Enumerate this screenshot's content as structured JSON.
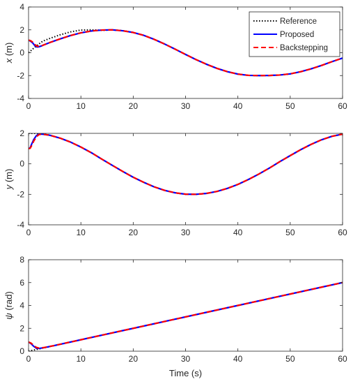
{
  "chart_data": [
    {
      "type": "line",
      "ylabel_var": "x",
      "ylabel_unit": " (m)",
      "xlabel": "",
      "xlim": [
        0,
        60
      ],
      "ylim": [
        -4,
        4
      ],
      "xticks": [
        0,
        10,
        20,
        30,
        40,
        50,
        60
      ],
      "yticks": [
        -4,
        -2,
        0,
        2,
        4
      ],
      "legend": {
        "position": "top-right",
        "entries": [
          {
            "name": "Reference",
            "color": "#000000",
            "style": "dotted"
          },
          {
            "name": "Proposed",
            "color": "#0000ff",
            "style": "solid"
          },
          {
            "name": "Backstepping",
            "color": "#ff0000",
            "style": "dashed"
          }
        ]
      },
      "series": [
        {
          "name": "Reference",
          "color": "#000000",
          "style": "dotted",
          "x": [
            0,
            0.5,
            1,
            1.5,
            2,
            2.5,
            3,
            4,
            6,
            8,
            10,
            12,
            14,
            16,
            18,
            20,
            22,
            24,
            26,
            28,
            30,
            32,
            34,
            36,
            38,
            40,
            42,
            44,
            46,
            48,
            50,
            52,
            54,
            56,
            58,
            60
          ],
          "y": [
            0,
            0.2,
            0.4,
            0.59,
            0.77,
            0.94,
            1.06,
            1.24,
            1.56,
            1.82,
            1.98,
            2.0,
            1.96,
            1.99,
            1.93,
            1.77,
            1.52,
            1.17,
            0.76,
            0.31,
            -0.15,
            -0.6,
            -1.01,
            -1.37,
            -1.66,
            -1.87,
            -1.98,
            -2.0,
            -1.99,
            -1.95,
            -1.85,
            -1.66,
            -1.41,
            -1.11,
            -0.78,
            -0.47
          ]
        },
        {
          "name": "Proposed",
          "color": "#0000ff",
          "style": "solid",
          "x": [
            0,
            0.4,
            0.8,
            1.2,
            1.6,
            2,
            2.5,
            3,
            4,
            6,
            8,
            10,
            12,
            14,
            16,
            18,
            20,
            22,
            24,
            26,
            28,
            30,
            32,
            34,
            36,
            38,
            40,
            42,
            44,
            46,
            48,
            50,
            52,
            54,
            56,
            58,
            60
          ],
          "y": [
            1.1,
            1.0,
            0.85,
            0.62,
            0.5,
            0.52,
            0.6,
            0.7,
            0.88,
            1.2,
            1.5,
            1.74,
            1.9,
            1.98,
            2.0,
            1.92,
            1.77,
            1.52,
            1.17,
            0.76,
            0.31,
            -0.15,
            -0.6,
            -1.01,
            -1.37,
            -1.66,
            -1.87,
            -1.98,
            -2.0,
            -1.99,
            -1.95,
            -1.85,
            -1.66,
            -1.41,
            -1.11,
            -0.78,
            -0.47
          ]
        },
        {
          "name": "Backstepping",
          "color": "#ff0000",
          "style": "dashed",
          "x": [
            0,
            0.4,
            0.8,
            1.2,
            1.6,
            2,
            2.5,
            3,
            4,
            6,
            8,
            10,
            12,
            14,
            16,
            18,
            20,
            22,
            24,
            26,
            28,
            30,
            32,
            34,
            36,
            38,
            40,
            42,
            44,
            46,
            48,
            50,
            52,
            54,
            56,
            58,
            60
          ],
          "y": [
            1.1,
            1.05,
            0.92,
            0.72,
            0.58,
            0.55,
            0.6,
            0.7,
            0.88,
            1.2,
            1.5,
            1.74,
            1.9,
            1.98,
            2.0,
            1.92,
            1.77,
            1.52,
            1.17,
            0.76,
            0.31,
            -0.15,
            -0.6,
            -1.01,
            -1.37,
            -1.66,
            -1.87,
            -1.98,
            -2.0,
            -1.99,
            -1.95,
            -1.85,
            -1.66,
            -1.41,
            -1.11,
            -0.78,
            -0.47
          ]
        }
      ]
    },
    {
      "type": "line",
      "ylabel_var": "y",
      "ylabel_unit": " (m)",
      "xlabel": "",
      "xlim": [
        0,
        60
      ],
      "ylim": [
        -4,
        2
      ],
      "xticks": [
        0,
        10,
        20,
        30,
        40,
        50,
        60
      ],
      "yticks": [
        -4,
        -2,
        0,
        2
      ],
      "series": [
        {
          "name": "Reference",
          "color": "#000000",
          "style": "dotted",
          "x": [
            0,
            1,
            2,
            3,
            4,
            6,
            8,
            10,
            12,
            14,
            16,
            18,
            20,
            22,
            24,
            26,
            28,
            30,
            32,
            34,
            36,
            38,
            40,
            42,
            44,
            46,
            48,
            50,
            52,
            54,
            56,
            58,
            60
          ],
          "y": [
            2.0,
            2.0,
            1.99,
            1.95,
            1.88,
            1.69,
            1.43,
            1.1,
            0.73,
            0.31,
            -0.1,
            -0.5,
            -0.88,
            -1.21,
            -1.51,
            -1.74,
            -1.9,
            -1.99,
            -2.0,
            -1.94,
            -1.81,
            -1.61,
            -1.35,
            -1.03,
            -0.67,
            -0.28,
            0.14,
            0.54,
            0.93,
            1.28,
            1.58,
            1.81,
            1.95
          ]
        },
        {
          "name": "Proposed",
          "color": "#0000ff",
          "style": "solid",
          "x": [
            0,
            0.3,
            0.6,
            1,
            1.5,
            2,
            2.5,
            3,
            4,
            6,
            8,
            10,
            12,
            14,
            16,
            18,
            20,
            22,
            24,
            26,
            28,
            30,
            32,
            34,
            36,
            38,
            40,
            42,
            44,
            46,
            48,
            50,
            52,
            54,
            56,
            58,
            60
          ],
          "y": [
            1.0,
            1.05,
            1.3,
            1.6,
            1.85,
            1.96,
            1.95,
            1.93,
            1.88,
            1.69,
            1.43,
            1.1,
            0.73,
            0.31,
            -0.1,
            -0.5,
            -0.88,
            -1.21,
            -1.51,
            -1.74,
            -1.9,
            -1.99,
            -2.0,
            -1.94,
            -1.81,
            -1.61,
            -1.35,
            -1.03,
            -0.67,
            -0.28,
            0.14,
            0.54,
            0.93,
            1.28,
            1.58,
            1.81,
            1.95
          ]
        },
        {
          "name": "Backstepping",
          "color": "#ff0000",
          "style": "dashed",
          "x": [
            0,
            0.3,
            0.6,
            1,
            1.5,
            2,
            2.5,
            3,
            4,
            6,
            8,
            10,
            12,
            14,
            16,
            18,
            20,
            22,
            24,
            26,
            28,
            30,
            32,
            34,
            36,
            38,
            40,
            42,
            44,
            46,
            48,
            50,
            52,
            54,
            56,
            58,
            60
          ],
          "y": [
            1.0,
            1.02,
            1.2,
            1.5,
            1.78,
            1.92,
            1.95,
            1.93,
            1.88,
            1.69,
            1.43,
            1.1,
            0.73,
            0.31,
            -0.1,
            -0.5,
            -0.88,
            -1.21,
            -1.51,
            -1.74,
            -1.9,
            -1.99,
            -2.0,
            -1.94,
            -1.81,
            -1.61,
            -1.35,
            -1.03,
            -0.67,
            -0.28,
            0.14,
            0.54,
            0.93,
            1.28,
            1.58,
            1.81,
            1.95
          ]
        }
      ]
    },
    {
      "type": "line",
      "ylabel_var": "ψ",
      "ylabel_unit": " (rad)",
      "xlabel": "Time (s)",
      "xlim": [
        0,
        60
      ],
      "ylim": [
        0,
        8
      ],
      "xticks": [
        0,
        10,
        20,
        30,
        40,
        50,
        60
      ],
      "yticks": [
        0,
        2,
        4,
        6,
        8
      ],
      "series": [
        {
          "name": "Reference",
          "color": "#000000",
          "style": "dotted",
          "x": [
            0,
            1,
            2,
            3,
            5,
            10,
            20,
            30,
            40,
            50,
            60
          ],
          "y": [
            0.0,
            0.1,
            0.2,
            0.3,
            0.5,
            1.0,
            2.0,
            3.0,
            4.0,
            5.0,
            6.0
          ]
        },
        {
          "name": "Proposed",
          "color": "#0000ff",
          "style": "solid",
          "x": [
            0,
            0.5,
            1,
            1.5,
            2,
            3,
            5,
            10,
            20,
            30,
            40,
            50,
            60
          ],
          "y": [
            0.8,
            0.65,
            0.42,
            0.26,
            0.24,
            0.31,
            0.5,
            1.0,
            2.0,
            3.0,
            4.0,
            5.0,
            6.0
          ]
        },
        {
          "name": "Backstepping",
          "color": "#ff0000",
          "style": "dashed",
          "x": [
            0,
            0.5,
            1,
            1.5,
            2,
            3,
            5,
            10,
            20,
            30,
            40,
            50,
            60
          ],
          "y": [
            0.8,
            0.7,
            0.5,
            0.33,
            0.27,
            0.32,
            0.5,
            1.0,
            2.0,
            3.0,
            4.0,
            5.0,
            6.0
          ]
        }
      ]
    }
  ]
}
